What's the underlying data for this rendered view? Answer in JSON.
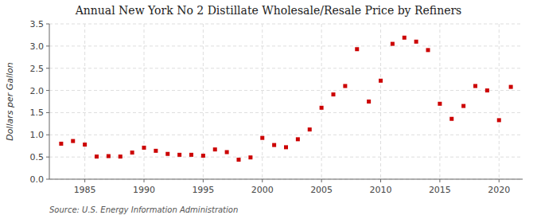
{
  "chart_data": {
    "type": "scatter",
    "title": "Annual New York No 2 Distillate Wholesale/Resale Price by Refiners",
    "y_label": "Dollars per Gallon",
    "source": "Source: U.S. Energy Information Administration",
    "x": [
      1983,
      1984,
      1985,
      1986,
      1987,
      1988,
      1989,
      1990,
      1991,
      1992,
      1993,
      1994,
      1995,
      1996,
      1997,
      1998,
      1999,
      2000,
      2001,
      2002,
      2003,
      2004,
      2005,
      2006,
      2007,
      2008,
      2009,
      2010,
      2011,
      2012,
      2013,
      2014,
      2015,
      2016,
      2017,
      2018,
      2019,
      2020,
      2021
    ],
    "values": [
      0.8,
      0.86,
      0.78,
      0.51,
      0.52,
      0.51,
      0.6,
      0.71,
      0.64,
      0.57,
      0.55,
      0.55,
      0.53,
      0.67,
      0.61,
      0.44,
      0.49,
      0.93,
      0.77,
      0.72,
      0.9,
      1.12,
      1.61,
      1.91,
      2.1,
      2.93,
      1.75,
      2.22,
      3.05,
      3.19,
      3.1,
      2.91,
      1.7,
      1.36,
      1.65,
      2.1,
      2.0,
      1.33,
      2.08
    ],
    "color": "#cc0000",
    "marker": "square",
    "xlim": [
      1982,
      2022
    ],
    "xticks": [
      1985,
      1990,
      1995,
      2000,
      2005,
      2010,
      2015,
      2020
    ],
    "ylim": [
      0.0,
      3.5
    ],
    "yticks": [
      {
        "value": 0.0,
        "label": "0.0"
      },
      0.5,
      {
        "value": 1.0,
        "label": "1.0"
      },
      1.5,
      {
        "value": 2.0,
        "label": "2.0"
      },
      2.5,
      {
        "value": 3.0,
        "label": "3.0"
      },
      3.5
    ],
    "grid": true
  }
}
